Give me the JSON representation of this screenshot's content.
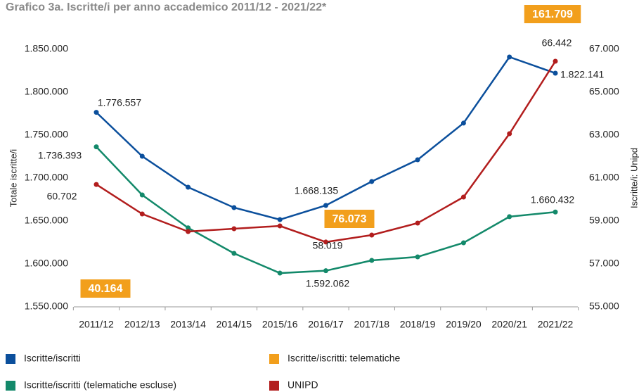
{
  "chart_data": {
    "type": "line",
    "title": "Grafico 3a. Iscritte/i per anno accademico 2011/12 - 2021/22*",
    "y_label": "Totale iscritte/i",
    "y2_label": "Iscritte/i: Unipd",
    "categories": [
      "2011/12",
      "2012/13",
      "2013/14",
      "2014/15",
      "2015/16",
      "2016/17",
      "2017/18",
      "2018/19",
      "2019/20",
      "2020/21",
      "2021/22"
    ],
    "ylim": [
      1550000,
      1850000
    ],
    "yticks": [
      {
        "value": 1550000,
        "label": "1.550.000"
      },
      {
        "value": 1600000,
        "label": "1.600.000"
      },
      {
        "value": 1650000,
        "label": "1.650.000"
      },
      {
        "value": 1700000,
        "label": "1.700.000"
      },
      {
        "value": 1750000,
        "label": "1.750.000"
      },
      {
        "value": 1800000,
        "label": "1.800.000"
      },
      {
        "value": 1850000,
        "label": "1.850.000"
      }
    ],
    "y2lim": [
      55000,
      67000
    ],
    "y2ticks": [
      {
        "value": 55000,
        "label": "55.000"
      },
      {
        "value": 57000,
        "label": "57.000"
      },
      {
        "value": 59000,
        "label": "59.000"
      },
      {
        "value": 61000,
        "label": "61.000"
      },
      {
        "value": 63000,
        "label": "63.000"
      },
      {
        "value": 65000,
        "label": "65.000"
      },
      {
        "value": 67000,
        "label": "67.000"
      }
    ],
    "grid": false,
    "series": [
      {
        "name": "Iscritte/iscritti",
        "color": "#0b4f9c",
        "values": [
          1776557,
          1725400,
          1689300,
          1665600,
          1651600,
          1668135,
          1696000,
          1721300,
          1764000,
          1841000,
          1822141
        ],
        "value_labels": [
          "1.776.557",
          null,
          null,
          null,
          null,
          "1.668.135",
          null,
          null,
          null,
          null,
          "1.822.141"
        ]
      },
      {
        "name": "Iscritte/iscritti: telematiche",
        "color": "#f29f1c",
        "style": "box",
        "values": [
          40164,
          null,
          null,
          null,
          null,
          76073,
          null,
          null,
          null,
          null,
          161709
        ],
        "value_labels": [
          "40.164",
          null,
          null,
          null,
          null,
          "76.073",
          null,
          null,
          null,
          null,
          "161.709"
        ]
      },
      {
        "name": "Iscritte/iscritti (telematiche escluse)",
        "color": "#13896a",
        "values": [
          1736393,
          1680300,
          1642000,
          1612300,
          1589300,
          1592062,
          1604100,
          1608200,
          1624600,
          1655000,
          1660432
        ],
        "value_labels": [
          "1.736.393",
          null,
          null,
          null,
          null,
          "1.592.062",
          null,
          null,
          null,
          null,
          "1.660.432"
        ]
      },
      {
        "name": "UNIPD",
        "color": "#b21d1d",
        "axis": "y2",
        "values": [
          60702,
          59328,
          58508,
          58639,
          58770,
          58019,
          58344,
          58902,
          60115,
          63066,
          66442
        ],
        "value_labels": [
          "60.702",
          null,
          null,
          null,
          null,
          "58.019",
          null,
          null,
          null,
          null,
          "66.442"
        ]
      }
    ]
  }
}
